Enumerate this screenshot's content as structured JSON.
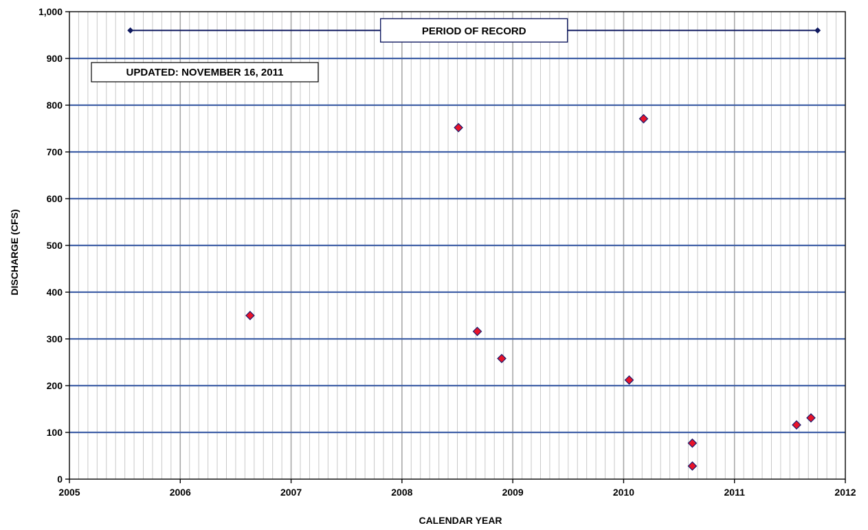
{
  "chart_data": {
    "type": "scatter",
    "title": "",
    "xlabel": "CALENDAR YEAR",
    "ylabel": "DISCHARGE (CFS)",
    "xlim": [
      2005,
      2012
    ],
    "ylim": [
      0,
      1000
    ],
    "x_ticks": [
      2005,
      2006,
      2007,
      2008,
      2009,
      2010,
      2011,
      2012
    ],
    "x_tick_labels": [
      "2005",
      "2006",
      "2007",
      "2008",
      "2009",
      "2010",
      "2011",
      "2012"
    ],
    "y_ticks": [
      0,
      100,
      200,
      300,
      400,
      500,
      600,
      700,
      800,
      900,
      1000
    ],
    "y_tick_labels": [
      "0",
      "100",
      "200",
      "300",
      "400",
      "500",
      "600",
      "700",
      "800",
      "900",
      "1,000"
    ],
    "grid": true,
    "minor_x_gridlines_per_year": 12,
    "series": [
      {
        "marker": "diamond",
        "color": "#e8142a",
        "edge_color": "#1a1a6e",
        "points": [
          {
            "x": 2006.63,
            "y": 350
          },
          {
            "x": 2008.51,
            "y": 752
          },
          {
            "x": 2008.68,
            "y": 316
          },
          {
            "x": 2008.9,
            "y": 258
          },
          {
            "x": 2010.05,
            "y": 212
          },
          {
            "x": 2010.18,
            "y": 771
          },
          {
            "x": 2010.62,
            "y": 77
          },
          {
            "x": 2010.62,
            "y": 28
          },
          {
            "x": 2011.56,
            "y": 116
          },
          {
            "x": 2011.69,
            "y": 131
          }
        ]
      }
    ],
    "period_of_record": {
      "label": "PERIOD OF RECORD",
      "x_start": 2005.55,
      "x_end": 2011.75,
      "y": 960,
      "color": "#101a60"
    },
    "annotation": "UPDATED:  NOVEMBER 16, 2011",
    "colors": {
      "major_grid": "#3f5fa6",
      "minor_grid": "#c8c8c8",
      "year_grid": "#a8a8a8",
      "axis": "#000000"
    }
  }
}
